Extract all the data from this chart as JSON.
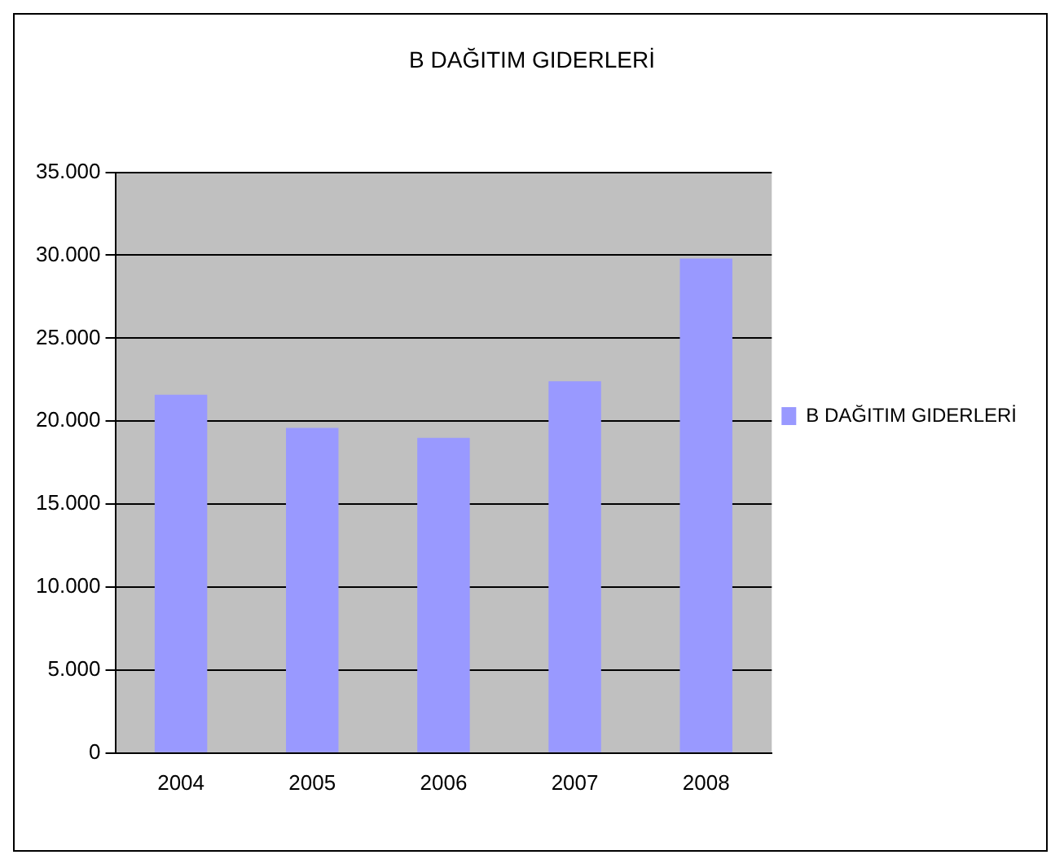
{
  "chart_data": {
    "type": "bar",
    "title": "B DAĞITIM GIDERLERİ",
    "categories": [
      "2004",
      "2005",
      "2006",
      "2007",
      "2008"
    ],
    "series": [
      {
        "name": "B DAĞITIM GIDERLERİ",
        "color": "#9999ff",
        "values": [
          21600,
          19600,
          19000,
          22400,
          29800
        ]
      }
    ],
    "ylim": [
      0,
      35000
    ],
    "yticks": [
      {
        "value": 0,
        "label": "0"
      },
      {
        "value": 5000,
        "label": "5.000"
      },
      {
        "value": 10000,
        "label": "10.000"
      },
      {
        "value": 15000,
        "label": "15.000"
      },
      {
        "value": 20000,
        "label": "20.000"
      },
      {
        "value": 25000,
        "label": "25.000"
      },
      {
        "value": 30000,
        "label": "30.000"
      },
      {
        "value": 35000,
        "label": "35.000"
      }
    ],
    "grid": "y",
    "legend": "right"
  }
}
